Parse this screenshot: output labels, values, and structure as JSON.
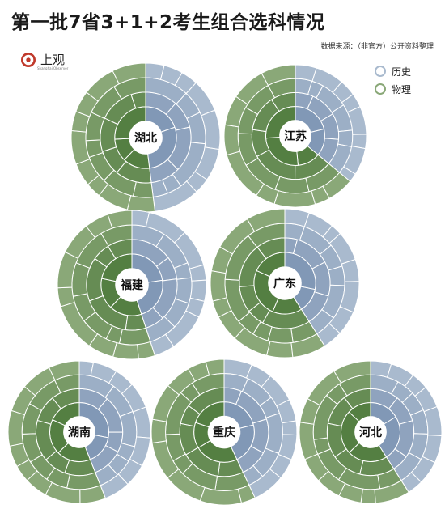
{
  "header": {
    "title": "第一批7省3+1+2考生组合选科情况",
    "source": "数据来源：（非官方）公开资料整理"
  },
  "logo": {
    "text": "上观",
    "subtext": "Shanghai Observer",
    "color": "#c0392b"
  },
  "colors": {
    "history": "#a9bace",
    "history_dark": "#7d94b3",
    "physics": "#8aa878",
    "physics_dark": "#4e7a3c",
    "divider": "#ffffff"
  },
  "chart_data": {
    "type": "sunburst",
    "legend": [
      {
        "name": "历史",
        "color": "#a9bace"
      },
      {
        "name": "物理",
        "color": "#8aa878"
      }
    ],
    "charts": [
      {
        "province": "湖北",
        "history_share": 0.48,
        "rings": 4
      },
      {
        "province": "江苏",
        "history_share": 0.36,
        "rings": 4
      },
      {
        "province": "福建",
        "history_share": 0.45,
        "rings": 4
      },
      {
        "province": "广东",
        "history_share": 0.41,
        "rings": 4
      },
      {
        "province": "湖南",
        "history_share": 0.44,
        "rings": 4
      },
      {
        "province": "重庆",
        "history_share": 0.43,
        "rings": 4
      },
      {
        "province": "河北",
        "history_share": 0.41,
        "rings": 4
      }
    ]
  }
}
